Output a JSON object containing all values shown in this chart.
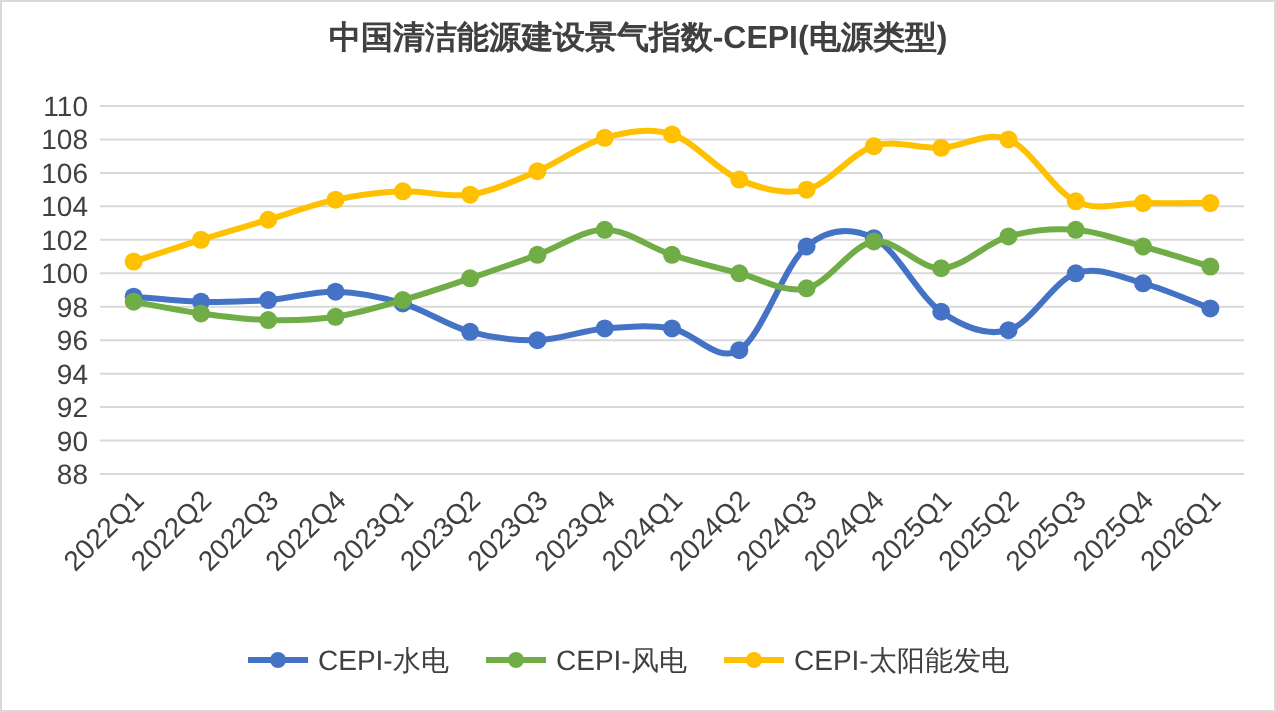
{
  "chart_data": {
    "type": "line",
    "title": "中国清洁能源建设景气指数-CEPI(电源类型)",
    "categories": [
      "2022Q1",
      "2022Q2",
      "2022Q3",
      "2022Q4",
      "2023Q1",
      "2023Q2",
      "2023Q3",
      "2023Q4",
      "2024Q1",
      "2024Q2",
      "2024Q3",
      "2024Q4",
      "2025Q1",
      "2025Q2",
      "2025Q3",
      "2025Q4",
      "2026Q1"
    ],
    "series": [
      {
        "name": "CEPI-水电",
        "color": "#4472c4",
        "values": [
          98.6,
          98.3,
          98.4,
          98.9,
          98.2,
          96.5,
          96.0,
          96.7,
          96.7,
          95.4,
          101.6,
          102.1,
          97.7,
          96.6,
          100.0,
          99.4,
          97.9
        ]
      },
      {
        "name": "CEPI-风电",
        "color": "#70ad47",
        "values": [
          98.3,
          97.6,
          97.2,
          97.4,
          98.4,
          99.7,
          101.1,
          102.6,
          101.1,
          100.0,
          99.1,
          101.9,
          100.3,
          102.2,
          102.6,
          101.6,
          100.4
        ]
      },
      {
        "name": "CEPI-太阳能发电",
        "color": "#ffc000",
        "values": [
          100.7,
          102.0,
          103.2,
          104.4,
          104.9,
          104.7,
          106.1,
          108.1,
          108.3,
          105.6,
          105.0,
          107.6,
          107.5,
          108.0,
          104.3,
          104.2,
          104.2
        ]
      }
    ],
    "ylim": [
      88,
      110
    ],
    "yticks": [
      88,
      90,
      92,
      94,
      96,
      98,
      100,
      102,
      104,
      106,
      108,
      110
    ],
    "grid": "y",
    "legend": "bottom",
    "marker": "circle",
    "line_style": "solid"
  }
}
